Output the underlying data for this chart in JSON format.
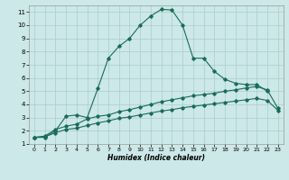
{
  "title": "",
  "xlabel": "Humidex (Indice chaleur)",
  "background_color": "#cce8e8",
  "grid_color": "#aacccc",
  "line_color": "#1a6b5a",
  "xlim": [
    -0.5,
    23.5
  ],
  "ylim": [
    1,
    11.5
  ],
  "xticks": [
    0,
    1,
    2,
    3,
    4,
    5,
    6,
    7,
    8,
    9,
    10,
    11,
    12,
    13,
    14,
    15,
    16,
    17,
    18,
    19,
    20,
    21,
    22,
    23
  ],
  "yticks": [
    1,
    2,
    3,
    4,
    5,
    6,
    7,
    8,
    9,
    10,
    11
  ],
  "curve1_x": [
    0,
    1,
    2,
    3,
    4,
    5,
    6,
    7,
    8,
    9,
    10,
    11,
    12,
    13,
    14,
    15,
    16,
    17,
    18,
    19,
    20,
    21,
    22
  ],
  "curve1_y": [
    1.5,
    1.5,
    2.0,
    3.1,
    3.2,
    3.0,
    5.2,
    7.5,
    8.4,
    9.0,
    10.0,
    10.7,
    11.2,
    11.15,
    10.0,
    7.5,
    7.5,
    6.5,
    5.9,
    5.6,
    5.5,
    5.5,
    5.0
  ],
  "curve2_x": [
    0,
    1,
    2,
    3,
    4,
    5,
    6,
    7,
    8,
    9,
    10,
    11,
    12,
    13,
    14,
    15,
    16,
    17,
    18,
    19,
    20,
    21,
    22,
    23
  ],
  "curve2_y": [
    1.5,
    1.6,
    2.1,
    2.35,
    2.5,
    2.9,
    3.1,
    3.2,
    3.45,
    3.6,
    3.8,
    4.0,
    4.2,
    4.35,
    4.5,
    4.65,
    4.75,
    4.85,
    5.0,
    5.1,
    5.25,
    5.35,
    5.1,
    3.7
  ],
  "curve3_x": [
    0,
    1,
    2,
    3,
    4,
    5,
    6,
    7,
    8,
    9,
    10,
    11,
    12,
    13,
    14,
    15,
    16,
    17,
    18,
    19,
    20,
    21,
    22,
    23
  ],
  "curve3_y": [
    1.5,
    1.55,
    1.85,
    2.1,
    2.2,
    2.4,
    2.6,
    2.75,
    2.95,
    3.05,
    3.2,
    3.35,
    3.5,
    3.6,
    3.75,
    3.85,
    3.95,
    4.05,
    4.15,
    4.25,
    4.35,
    4.45,
    4.3,
    3.55
  ]
}
